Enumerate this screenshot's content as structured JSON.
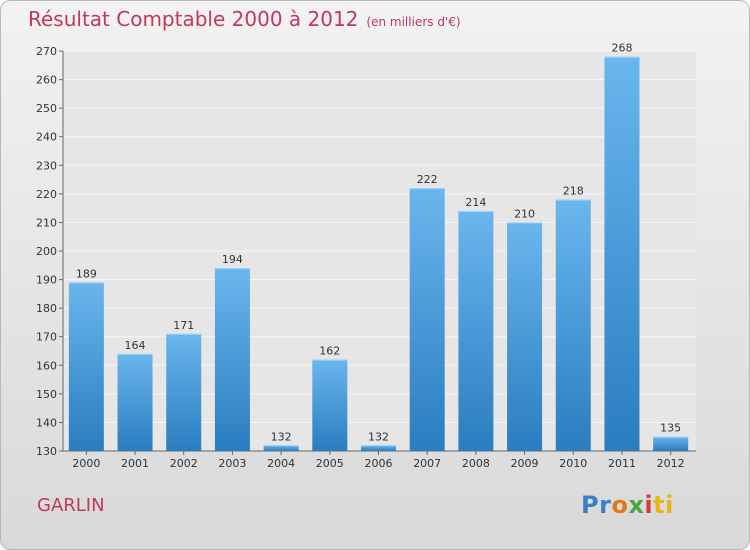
{
  "header": {
    "title": "Résultat Comptable 2000 à 2012",
    "unit": "(en milliers d'€)"
  },
  "commune": "GARLIN",
  "logo": {
    "text": "Proxiti",
    "parts": [
      "Pr",
      "o",
      "x",
      "i",
      "ti"
    ]
  },
  "colors": {
    "title": "#c0395a",
    "bar_light": "#6ab6ee",
    "bar_dark": "#2a7dbf"
  },
  "chart_data": {
    "type": "bar",
    "title": "Résultat Comptable 2000 à 2012",
    "subtitle": "(en milliers d'€)",
    "xlabel": "",
    "ylabel": "",
    "categories": [
      "2000",
      "2001",
      "2002",
      "2003",
      "2004",
      "2005",
      "2006",
      "2007",
      "2008",
      "2009",
      "2010",
      "2011",
      "2012"
    ],
    "values": [
      189,
      164,
      171,
      194,
      132,
      162,
      132,
      222,
      214,
      210,
      218,
      268,
      135
    ],
    "ylim": [
      130,
      270
    ],
    "yticks": [
      130,
      140,
      150,
      160,
      170,
      180,
      190,
      200,
      210,
      220,
      230,
      240,
      250,
      260,
      270
    ],
    "grid": true,
    "legend": "none"
  }
}
